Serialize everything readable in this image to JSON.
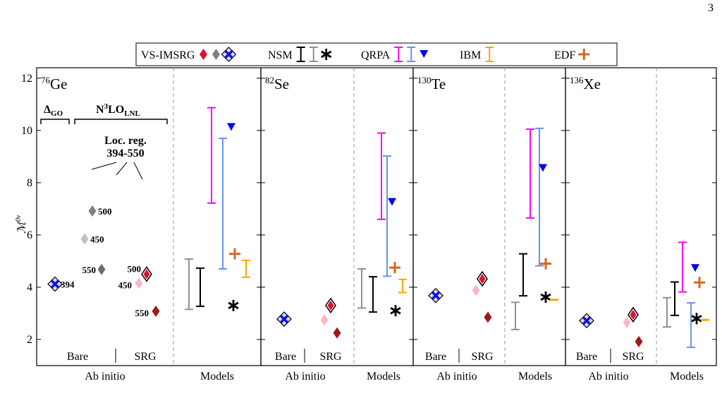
{
  "page_number": "3",
  "chart_data": {
    "type": "multi-panel-range",
    "ylabel": "ℳ",
    "ylabel_sup": "0ν",
    "ylim": [
      1,
      12.4
    ],
    "yticks": [
      2,
      4,
      6,
      8,
      10,
      12
    ],
    "legend": [
      {
        "name": "VS-IMSRG",
        "symbols": [
          {
            "shape": "diamond",
            "color": "#e0102e"
          },
          {
            "shape": "diamond",
            "color": "#808080"
          },
          {
            "shape": "xcross",
            "color": "#1010e0"
          }
        ]
      },
      {
        "name": "NSM",
        "symbols": [
          {
            "shape": "bar",
            "color": "#000000"
          },
          {
            "shape": "bar",
            "color": "#909090"
          },
          {
            "shape": "asterisk",
            "color": "#000000"
          }
        ]
      },
      {
        "name": "QRPA",
        "symbols": [
          {
            "shape": "bar",
            "color": "#ff00ff"
          },
          {
            "shape": "bar",
            "color": "#6495ed"
          },
          {
            "shape": "triangle",
            "color": "#0000ee"
          }
        ]
      },
      {
        "name": "IBM",
        "symbols": [
          {
            "shape": "bar",
            "color": "#ffa500"
          }
        ]
      },
      {
        "name": "EDF",
        "symbols": [
          {
            "shape": "plus",
            "color": "#d2691e"
          }
        ]
      }
    ],
    "group_labels": {
      "bare": "Bare",
      "srg": "SRG",
      "ab_initio": "Ab initio",
      "models": "Models"
    },
    "annotations": {
      "dgo": [
        "Δ",
        "GO"
      ],
      "n3lo": [
        "N",
        "3",
        "LO",
        "LNL"
      ],
      "locreg": "Loc. reg.",
      "range": "394-550"
    },
    "panels": [
      {
        "mass": "76",
        "element": "Ge",
        "marks": [
          {
            "shape": "xcross",
            "color": "#1010e0",
            "value": 4.12,
            "label": "394"
          },
          {
            "shape": "diamond",
            "color": "#c0c0c0",
            "value": 5.85,
            "label": "450"
          },
          {
            "shape": "diamond",
            "color": "#808080",
            "value": 6.92,
            "label": "500"
          },
          {
            "shape": "diamond",
            "color": "#6e6e6e",
            "value": 4.68,
            "label": "550"
          },
          {
            "shape": "bdiamond",
            "color": "#e0102e",
            "value": 4.5,
            "label": "500"
          },
          {
            "shape": "diamond",
            "color": "#ffb6c1",
            "value": 4.15,
            "label": "450"
          },
          {
            "shape": "diamond",
            "color": "#a01818",
            "value": 3.08,
            "label": "550"
          },
          {
            "shape": "bar",
            "color": "#909090",
            "low": 3.15,
            "high": 5.08
          },
          {
            "shape": "bar",
            "color": "#000000",
            "low": 3.27,
            "high": 4.73
          },
          {
            "shape": "bar",
            "color": "#ff00ff",
            "low": 7.22,
            "high": 10.87
          },
          {
            "shape": "bar",
            "color": "#6495ed",
            "low": 4.7,
            "high": 9.7
          },
          {
            "shape": "triangle",
            "color": "#0000ee",
            "value": 10.12
          },
          {
            "shape": "plus",
            "color": "#d2691e",
            "value": 5.28
          },
          {
            "shape": "asterisk",
            "color": "#000000",
            "value": 3.3
          },
          {
            "shape": "bar",
            "color": "#ffa500",
            "low": 4.38,
            "high": 5.03
          }
        ]
      },
      {
        "mass": "82",
        "element": "Se",
        "marks": [
          {
            "shape": "xcross",
            "color": "#1010e0",
            "value": 2.78
          },
          {
            "shape": "diamond",
            "color": "#ffb6c1",
            "value": 2.75
          },
          {
            "shape": "bdiamond",
            "color": "#e0102e",
            "value": 3.3
          },
          {
            "shape": "diamond",
            "color": "#a01818",
            "value": 2.25
          },
          {
            "shape": "bar",
            "color": "#909090",
            "low": 3.2,
            "high": 4.7
          },
          {
            "shape": "bar",
            "color": "#000000",
            "low": 3.05,
            "high": 4.4
          },
          {
            "shape": "bar",
            "color": "#ff00ff",
            "low": 6.6,
            "high": 9.9
          },
          {
            "shape": "bar",
            "color": "#6495ed",
            "low": 4.42,
            "high": 9.02
          },
          {
            "shape": "triangle",
            "color": "#0000ee",
            "value": 7.25
          },
          {
            "shape": "plus",
            "color": "#d2691e",
            "value": 4.75
          },
          {
            "shape": "asterisk",
            "color": "#000000",
            "value": 3.1
          },
          {
            "shape": "bar",
            "color": "#ffa500",
            "low": 3.8,
            "high": 4.3
          }
        ]
      },
      {
        "mass": "130",
        "element": "Te",
        "marks": [
          {
            "shape": "xcross",
            "color": "#1010e0",
            "value": 3.68
          },
          {
            "shape": "diamond",
            "color": "#ffb6c1",
            "value": 3.88
          },
          {
            "shape": "bdiamond",
            "color": "#e0102e",
            "value": 4.32
          },
          {
            "shape": "diamond",
            "color": "#a01818",
            "value": 2.85
          },
          {
            "shape": "bar",
            "color": "#909090",
            "low": 2.38,
            "high": 3.42
          },
          {
            "shape": "bar",
            "color": "#000000",
            "low": 3.67,
            "high": 5.28
          },
          {
            "shape": "bar",
            "color": "#ff00ff",
            "low": 6.65,
            "high": 10.05
          },
          {
            "shape": "bar",
            "color": "#6495ed",
            "low": 4.82,
            "high": 10.08
          },
          {
            "shape": "triangle",
            "color": "#0000ee",
            "value": 8.55
          },
          {
            "shape": "plus",
            "color": "#d2691e",
            "value": 4.9
          },
          {
            "shape": "asterisk",
            "color": "#000000",
            "value": 3.62
          },
          {
            "shape": "dash",
            "color": "#ffa500",
            "value": 3.52
          }
        ]
      },
      {
        "mass": "136",
        "element": "Xe",
        "marks": [
          {
            "shape": "xcross",
            "color": "#1010e0",
            "value": 2.72
          },
          {
            "shape": "diamond",
            "color": "#ffb6c1",
            "value": 2.65
          },
          {
            "shape": "bdiamond",
            "color": "#e0102e",
            "value": 2.95
          },
          {
            "shape": "diamond",
            "color": "#a01818",
            "value": 1.92
          },
          {
            "shape": "bar",
            "color": "#909090",
            "low": 2.48,
            "high": 3.6
          },
          {
            "shape": "bar",
            "color": "#000000",
            "low": 2.92,
            "high": 4.2
          },
          {
            "shape": "bar",
            "color": "#ff00ff",
            "low": 3.82,
            "high": 5.72
          },
          {
            "shape": "bar",
            "color": "#6495ed",
            "low": 1.7,
            "high": 3.4
          },
          {
            "shape": "triangle",
            "color": "#0000ee",
            "value": 4.72
          },
          {
            "shape": "plus",
            "color": "#d2691e",
            "value": 4.18
          },
          {
            "shape": "asterisk",
            "color": "#000000",
            "value": 2.8
          },
          {
            "shape": "dash",
            "color": "#ffa500",
            "value": 2.75
          }
        ]
      }
    ]
  }
}
